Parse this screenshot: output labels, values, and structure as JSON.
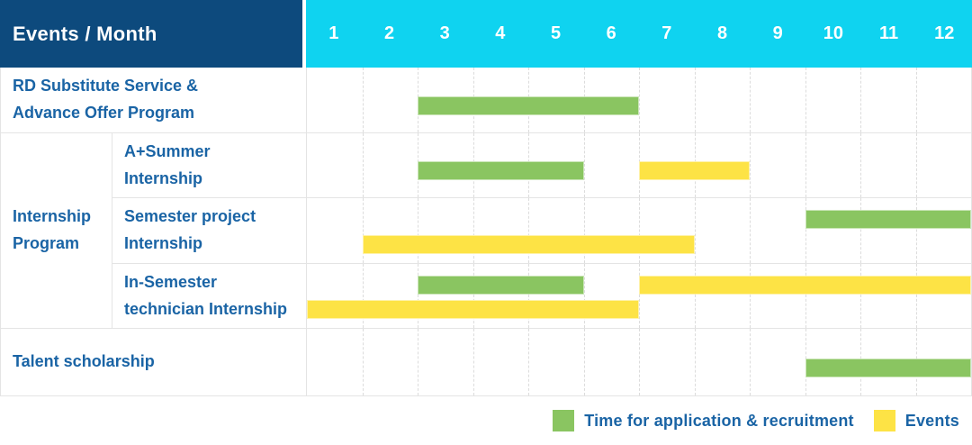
{
  "chart_data": {
    "type": "gantt",
    "title": "Events / Month",
    "x_axis": {
      "unit": "month",
      "range": [
        1,
        12
      ],
      "ticks": [
        "1",
        "2",
        "3",
        "4",
        "5",
        "6",
        "7",
        "8",
        "9",
        "10",
        "11",
        "12"
      ]
    },
    "rows": {
      "rd": {
        "label": "RD Substitute Service &\nAdvance Offer Program",
        "bars": [
          {
            "type": "application",
            "start": 3,
            "end": 6,
            "track": "single"
          }
        ]
      },
      "internship_group_label": "Internship\nProgram",
      "summer": {
        "label": "A+Summer\nInternship",
        "bars": [
          {
            "type": "application",
            "start": 3,
            "end": 5,
            "track": "single"
          },
          {
            "type": "event",
            "start": 7,
            "end": 8,
            "track": "single"
          }
        ]
      },
      "semester": {
        "label": "Semester project\nInternship",
        "bars": [
          {
            "type": "application",
            "start": 10,
            "end": 12,
            "track": "top"
          },
          {
            "type": "event",
            "start": 2,
            "end": 7,
            "track": "bottom"
          }
        ]
      },
      "insem": {
        "label": "In-Semester\ntechnician Internship",
        "bars": [
          {
            "type": "application",
            "start": 3,
            "end": 5,
            "track": "top"
          },
          {
            "type": "event",
            "start": 7,
            "end": 12,
            "track": "top"
          },
          {
            "type": "event",
            "start": 1,
            "end": 6,
            "track": "bottom"
          }
        ]
      },
      "talent": {
        "label": "Talent scholarship",
        "bars": [
          {
            "type": "application",
            "start": 10,
            "end": 12,
            "track": "single"
          }
        ]
      }
    },
    "legend": [
      {
        "key": "application",
        "label": "Time for application & recruitment"
      },
      {
        "key": "event",
        "label": "Events"
      }
    ],
    "legend_position": "bottom-right",
    "grid": "dashed-vertical-month-lines"
  },
  "colors": {
    "application": "#8ac561",
    "event": "#fde345",
    "header_navy": "#0d4a7d",
    "header_cyan": "#0fd3f0",
    "label_blue": "#1a64a5",
    "grid_line": "#dcdcdc",
    "row_border": "#e4e4e4"
  }
}
